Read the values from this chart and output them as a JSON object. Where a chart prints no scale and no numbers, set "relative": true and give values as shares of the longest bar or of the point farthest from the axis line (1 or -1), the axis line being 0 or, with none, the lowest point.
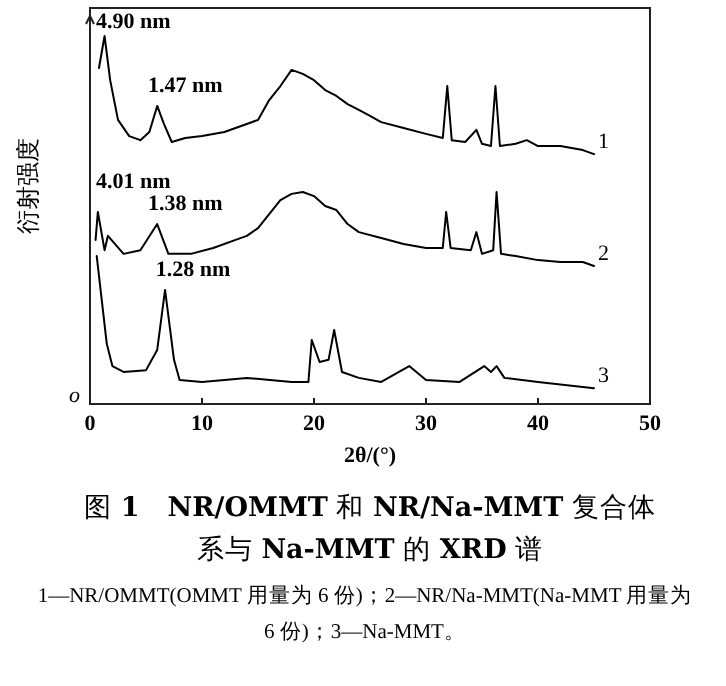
{
  "chart_data": {
    "type": "line",
    "relative": true,
    "title": "图 **1**　**NR/OMMT** 和 **NR/Na-MMT** 复合体系与 **Na-MMT** 的 **XRD** 谱",
    "xlabel": "2θ/(°)",
    "ylabel": "衍射强度",
    "xlim": [
      0,
      50
    ],
    "xticks": [
      0,
      10,
      20,
      30,
      40,
      50
    ],
    "tick_labels": "x",
    "grid": false,
    "legend": false,
    "marker": "none",
    "line_style": "solid",
    "series": [
      {
        "name": "1",
        "color": "#000000",
        "x": [
          0.8,
          1.3,
          1.8,
          2.5,
          3.5,
          4.5,
          5.3,
          6,
          6.6,
          7.3,
          8.5,
          10,
          12,
          14,
          15,
          16,
          17,
          18,
          19,
          20,
          21,
          22,
          23,
          24,
          25,
          26,
          28,
          30,
          31.5,
          31.9,
          32.3,
          33.5,
          34.5,
          35,
          35.8,
          36.2,
          36.6,
          38,
          39,
          40,
          42,
          44,
          45
        ],
        "values": [
          0.913,
          1.0,
          0.88,
          0.772,
          0.728,
          0.717,
          0.739,
          0.81,
          0.761,
          0.712,
          0.723,
          0.728,
          0.739,
          0.761,
          0.772,
          0.826,
          0.864,
          0.908,
          0.897,
          0.88,
          0.853,
          0.837,
          0.815,
          0.799,
          0.783,
          0.766,
          0.75,
          0.734,
          0.723,
          0.864,
          0.717,
          0.712,
          0.745,
          0.707,
          0.701,
          0.864,
          0.701,
          0.707,
          0.717,
          0.701,
          0.701,
          0.69,
          0.679
        ]
      },
      {
        "name": "2",
        "color": "#000000",
        "x": [
          0.5,
          0.7,
          1.3,
          1.6,
          3,
          4.5,
          6,
          7,
          9,
          11,
          13,
          14,
          15,
          16,
          17,
          18,
          19,
          20,
          21,
          22,
          23,
          24,
          26,
          28,
          30,
          31.5,
          31.8,
          32.2,
          34,
          34.5,
          35,
          36,
          36.3,
          36.7,
          38,
          40,
          42,
          44,
          45
        ],
        "values": [
          0.446,
          0.522,
          0.418,
          0.457,
          0.408,
          0.418,
          0.489,
          0.408,
          0.408,
          0.424,
          0.446,
          0.457,
          0.478,
          0.516,
          0.554,
          0.571,
          0.576,
          0.565,
          0.538,
          0.527,
          0.489,
          0.467,
          0.451,
          0.435,
          0.424,
          0.424,
          0.522,
          0.424,
          0.418,
          0.467,
          0.408,
          0.418,
          0.576,
          0.408,
          0.402,
          0.391,
          0.386,
          0.386,
          0.375
        ]
      },
      {
        "name": "3",
        "color": "#000000",
        "x": [
          0.6,
          1.5,
          2,
          3,
          5,
          6,
          6.7,
          7.5,
          8,
          10,
          14,
          18,
          19.5,
          19.8,
          20.5,
          21.3,
          21.8,
          22.5,
          24,
          26,
          28.5,
          30,
          33,
          35.2,
          35.8,
          36.3,
          37,
          40,
          45
        ],
        "values": [
          0.402,
          0.163,
          0.103,
          0.087,
          0.092,
          0.147,
          0.31,
          0.12,
          0.065,
          0.06,
          0.071,
          0.06,
          0.06,
          0.174,
          0.114,
          0.12,
          0.201,
          0.087,
          0.071,
          0.06,
          0.103,
          0.065,
          0.06,
          0.103,
          0.087,
          0.103,
          0.071,
          0.06,
          0.043
        ]
      }
    ],
    "annotations": [
      {
        "text": "4.90 nm",
        "x": 1.3,
        "y": 1.0
      },
      {
        "text": "1.47 nm",
        "x": 6,
        "y": 0.81
      },
      {
        "text": "4.01 nm",
        "x": 0.7,
        "y": 0.522
      },
      {
        "text": "1.38 nm",
        "x": 6,
        "y": 0.489
      },
      {
        "text": "1.28 nm",
        "x": 6.7,
        "y": 0.31
      },
      "o",
      "1—NR/OMMT(OMMT 用量为 6 份)；2—NR/Na-MMT(Na-MMT 用量为 6 份)；3—Na-MMT。"
    ]
  }
}
